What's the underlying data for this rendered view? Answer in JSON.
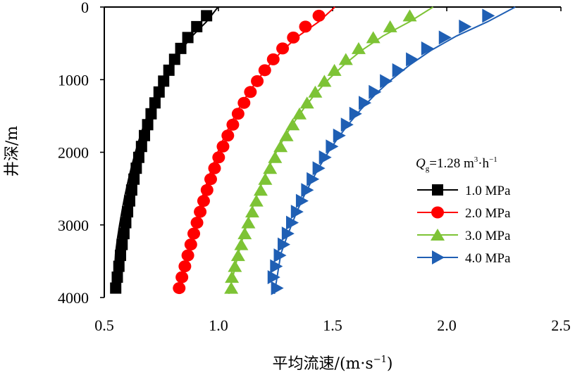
{
  "chart_data": {
    "type": "line",
    "title": "",
    "xlabel_main": "平均流速/(m·s",
    "xlabel_sup": "−1",
    "xlabel_end": ")",
    "ylabel": "井深/m",
    "xlim": [
      0.5,
      2.5
    ],
    "ylim": [
      0,
      4000
    ],
    "y_inverted": true,
    "x_ticks": [
      0.5,
      1.0,
      1.5,
      2.0,
      2.5
    ],
    "x_tick_labels": [
      "0.5",
      "1.0",
      "1.5",
      "2.0",
      "2.5"
    ],
    "y_ticks": [
      0,
      1000,
      2000,
      3000,
      4000
    ],
    "y_tick_labels": [
      "0",
      "1000",
      "2000",
      "3000",
      "4000"
    ],
    "legend": {
      "title_q": "Q",
      "title_sub": "g",
      "title_rest": "=1.28 m",
      "title_sup3": "3",
      "title_mid": "·h",
      "title_supm1": "−1",
      "placement": "center-right"
    },
    "marker_depths": [
      120,
      270,
      420,
      570,
      720,
      870,
      1020,
      1170,
      1320,
      1470,
      1620,
      1770,
      1920,
      2070,
      2220,
      2370,
      2520,
      2670,
      2820,
      2970,
      3120,
      3270,
      3420,
      3570,
      3720,
      3870
    ],
    "series": [
      {
        "name": "1.0 MPa",
        "color": "#000000",
        "marker": "square",
        "line_x": [
          0.998,
          0.948,
          0.885,
          0.835,
          0.793,
          0.758,
          0.727,
          0.7,
          0.676,
          0.655,
          0.636,
          0.619,
          0.604,
          0.59,
          0.578,
          0.567,
          0.557,
          0.549,
          0.541
        ],
        "line_depth": [
          0,
          200,
          400,
          600,
          800,
          1000,
          1200,
          1400,
          1600,
          1800,
          2000,
          2200,
          2400,
          2600,
          2800,
          3000,
          3200,
          3400,
          3900
        ],
        "x": [
          0.948,
          0.905,
          0.866,
          0.835,
          0.808,
          0.783,
          0.76,
          0.74,
          0.722,
          0.705,
          0.69,
          0.676,
          0.663,
          0.651,
          0.64,
          0.63,
          0.62,
          0.611,
          0.602,
          0.594,
          0.586,
          0.578,
          0.571,
          0.564,
          0.557,
          0.55
        ]
      },
      {
        "name": "2.0 MPa",
        "color": "#ff0000",
        "marker": "circle",
        "line_x": [
          1.51,
          1.44,
          1.35,
          1.28,
          1.222,
          1.172,
          1.128,
          1.089,
          1.055,
          1.024,
          0.997,
          0.973,
          0.951,
          0.931,
          0.913,
          0.897,
          0.882,
          0.868,
          0.832
        ],
        "line_depth": [
          0,
          200,
          400,
          600,
          800,
          1000,
          1200,
          1400,
          1600,
          1800,
          2000,
          2200,
          2400,
          2600,
          2800,
          3000,
          3200,
          3400,
          3950
        ],
        "x": [
          1.44,
          1.381,
          1.328,
          1.281,
          1.24,
          1.203,
          1.17,
          1.14,
          1.112,
          1.086,
          1.063,
          1.041,
          1.02,
          1.001,
          0.983,
          0.966,
          0.95,
          0.935,
          0.92,
          0.906,
          0.892,
          0.879,
          0.866,
          0.853,
          0.84,
          0.828
        ]
      },
      {
        "name": "3.0 MPa",
        "color": "#7dc335",
        "marker": "triangle-up",
        "line_x": [
          1.94,
          1.838,
          1.72,
          1.626,
          1.548,
          1.481,
          1.423,
          1.373,
          1.328,
          1.288,
          1.253,
          1.222,
          1.194,
          1.168,
          1.145,
          1.124,
          1.105,
          1.087,
          1.045
        ],
        "line_depth": [
          0,
          200,
          400,
          600,
          800,
          1000,
          1200,
          1400,
          1600,
          1800,
          2000,
          2200,
          2400,
          2600,
          2800,
          3000,
          3200,
          3400,
          3950
        ],
        "x": [
          1.838,
          1.752,
          1.678,
          1.614,
          1.558,
          1.508,
          1.464,
          1.424,
          1.388,
          1.355,
          1.325,
          1.298,
          1.272,
          1.248,
          1.226,
          1.205,
          1.185,
          1.166,
          1.148,
          1.131,
          1.115,
          1.1,
          1.086,
          1.072,
          1.059,
          1.056
        ]
      },
      {
        "name": "4.0 MPa",
        "color": "#1f5fb4",
        "marker": "triangle-right",
        "line_x": [
          2.3,
          2.18,
          2.042,
          1.93,
          1.837,
          1.757,
          1.688,
          1.627,
          1.573,
          1.524,
          1.481,
          1.442,
          1.407,
          1.375,
          1.346,
          1.32,
          1.296,
          1.273,
          1.245
        ],
        "line_depth": [
          0,
          200,
          400,
          600,
          800,
          1000,
          1200,
          1400,
          1600,
          1800,
          2000,
          2200,
          2400,
          2600,
          2800,
          3000,
          3200,
          3400,
          3950
        ],
        "x": [
          2.18,
          2.078,
          1.99,
          1.913,
          1.846,
          1.786,
          1.732,
          1.683,
          1.639,
          1.598,
          1.561,
          1.527,
          1.495,
          1.465,
          1.437,
          1.411,
          1.387,
          1.364,
          1.342,
          1.321,
          1.302,
          1.284,
          1.267,
          1.251,
          1.24,
          1.255
        ]
      }
    ]
  }
}
